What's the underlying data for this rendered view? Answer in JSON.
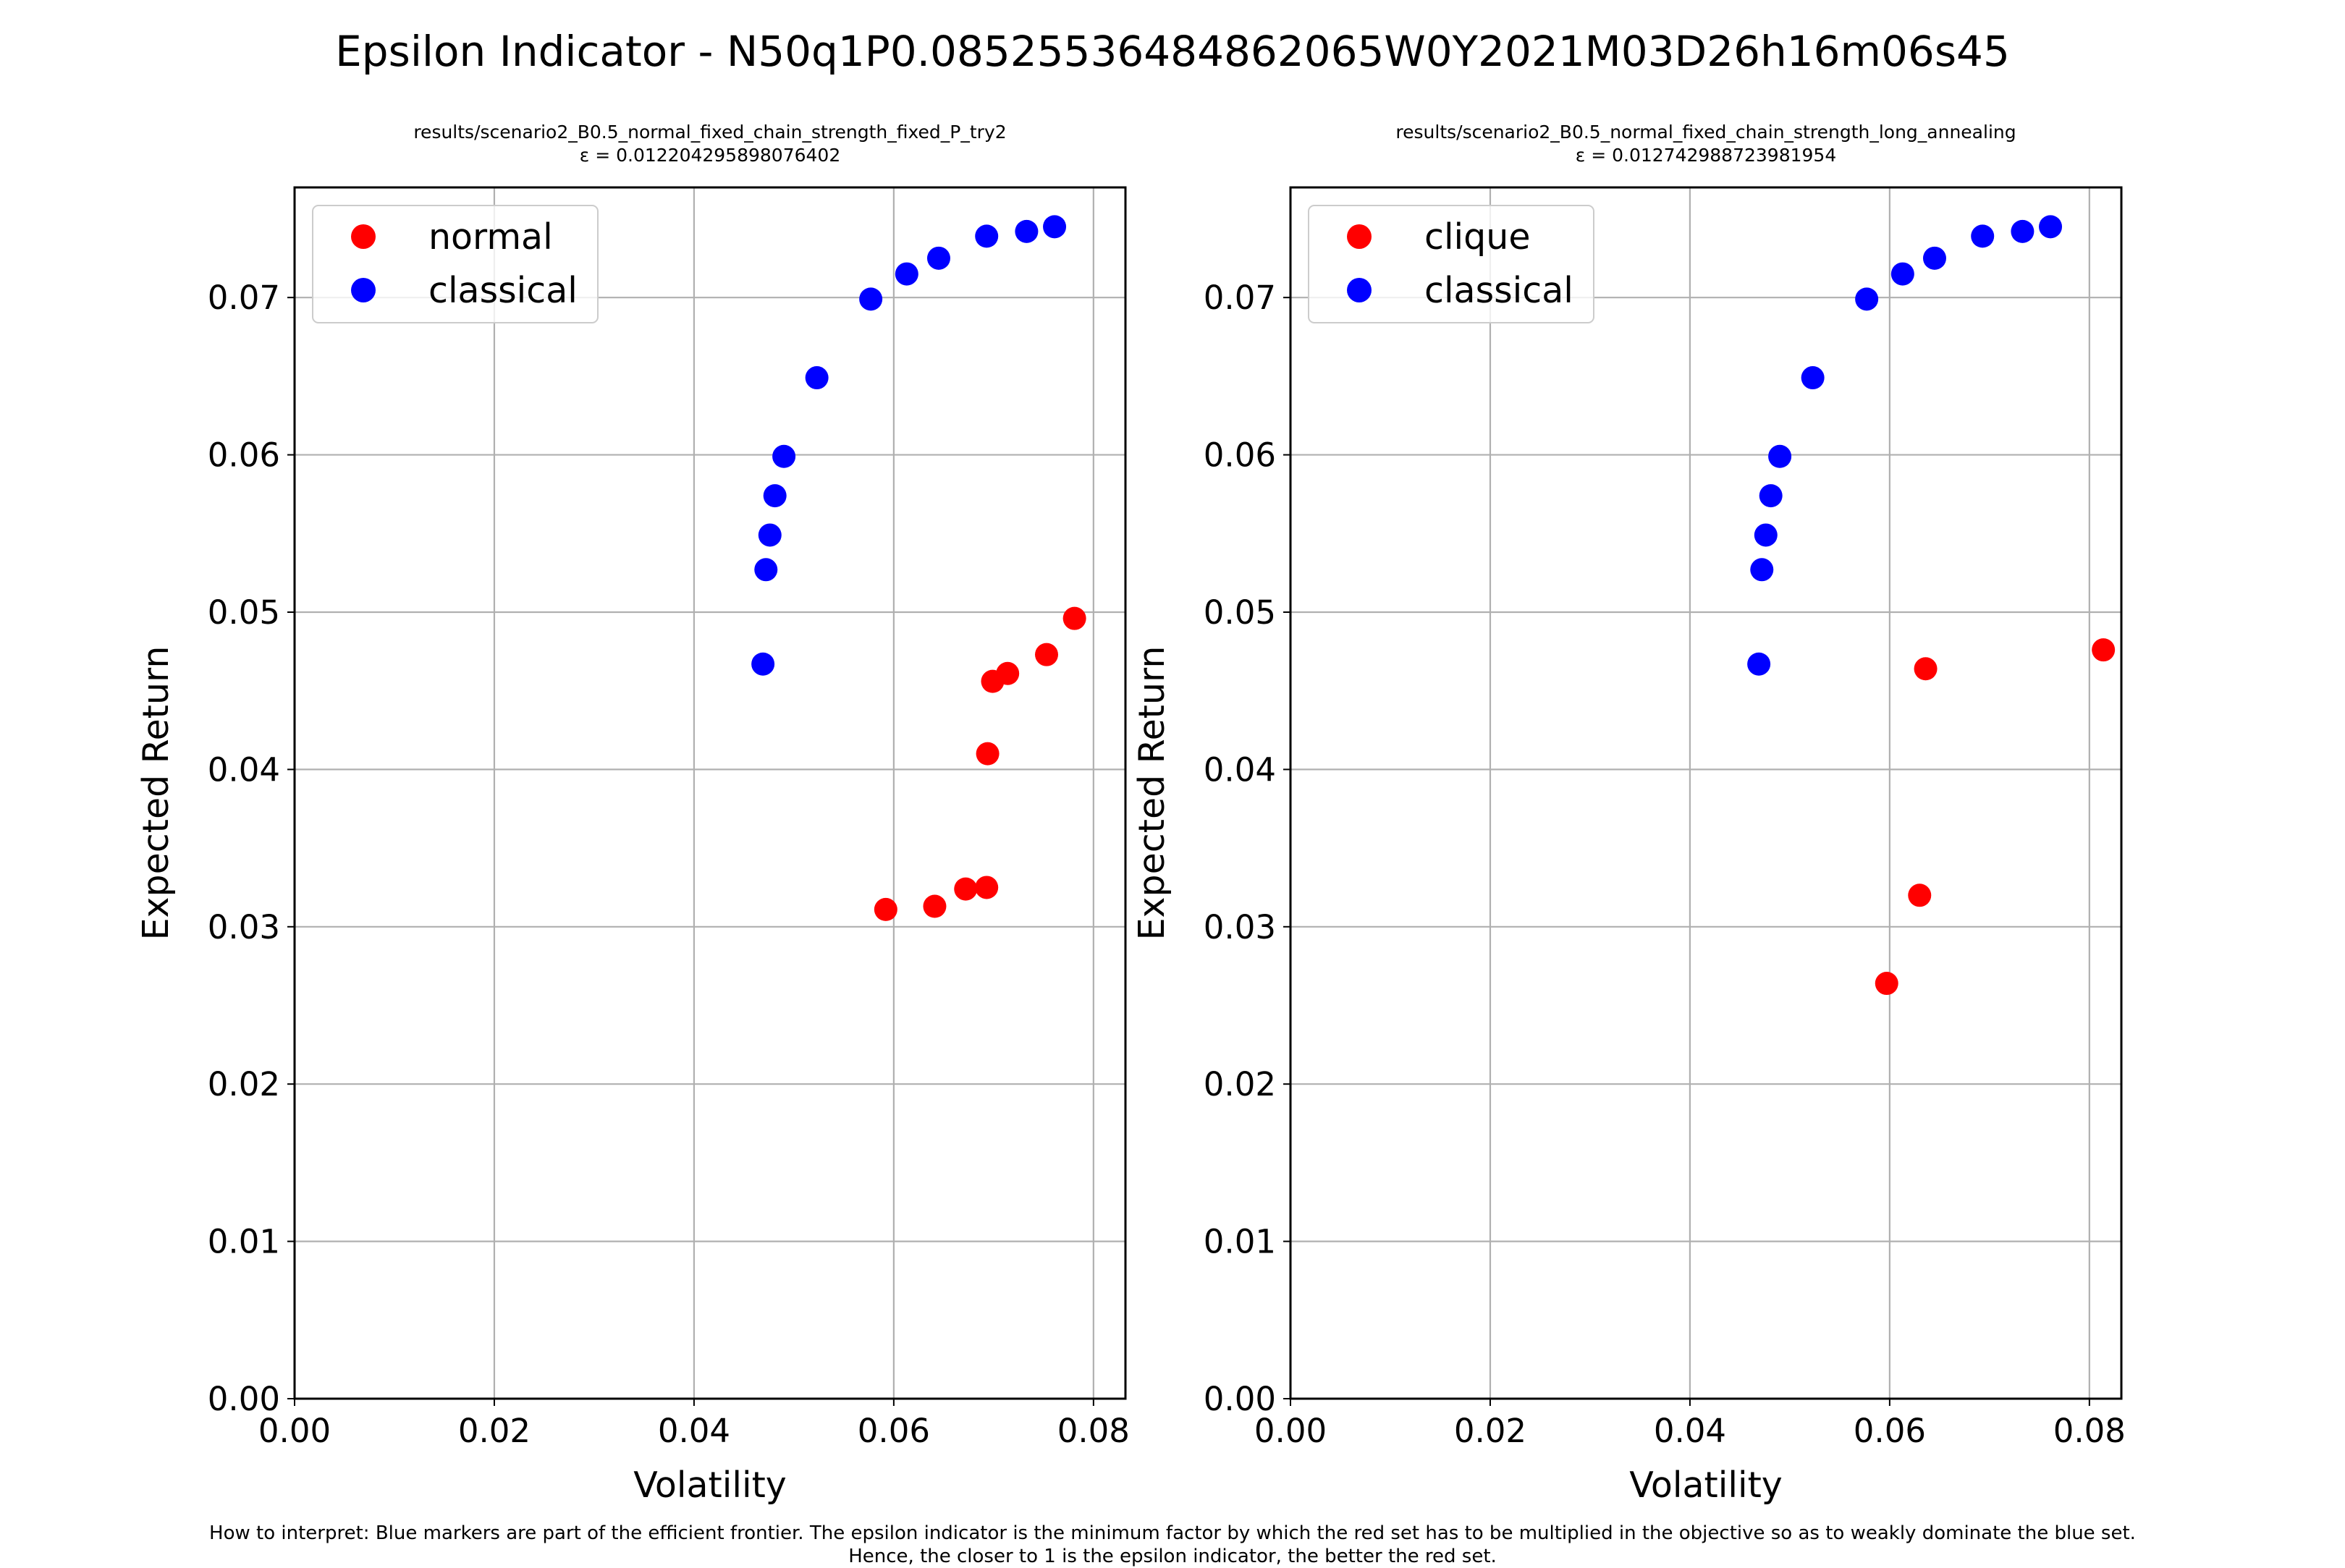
{
  "figure": {
    "suptitle": "Epsilon Indicator - N50q1P0.08525536484862065W0Y2021M03D26h16m06s45",
    "caption_line1": "How to interpret: Blue markers are part of the efficient frontier. The epsilon indicator is the minimum factor by which the red set has to be multiplied in the objective so as to weakly dominate the blue set.",
    "caption_line2": "Hence, the closer to 1 is the epsilon indicator, the better the red set."
  },
  "colors": {
    "red": "#ff0000",
    "blue": "#0000ff",
    "grid": "#b0b0b0",
    "axis": "#000000"
  },
  "chart_data": [
    {
      "type": "scatter",
      "title_line1": "results/scenario2_B0.5_normal_fixed_chain_strength_fixed_P_try2",
      "title_line2": "ε = 0.012204295898076402",
      "xlabel": "Volatility",
      "ylabel": "Expected Return",
      "xlim": [
        0.0,
        0.0832
      ],
      "ylim": [
        0.0,
        0.077
      ],
      "xticks": [
        0.0,
        0.02,
        0.04,
        0.06,
        0.08
      ],
      "xtick_labels": [
        "0.00",
        "0.02",
        "0.04",
        "0.06",
        "0.08"
      ],
      "yticks": [
        0.0,
        0.01,
        0.02,
        0.03,
        0.04,
        0.05,
        0.06,
        0.07
      ],
      "ytick_labels": [
        "0.00",
        "0.01",
        "0.02",
        "0.03",
        "0.04",
        "0.05",
        "0.06",
        "0.07"
      ],
      "grid": true,
      "legend_position": "top-left",
      "series": [
        {
          "name": "normal",
          "color": "#ff0000",
          "points": [
            [
              0.0592,
              0.0311
            ],
            [
              0.0641,
              0.0313
            ],
            [
              0.0672,
              0.0324
            ],
            [
              0.0693,
              0.0325
            ],
            [
              0.0694,
              0.041
            ],
            [
              0.0699,
              0.0456
            ],
            [
              0.0714,
              0.0461
            ],
            [
              0.0753,
              0.0473
            ],
            [
              0.0781,
              0.0496
            ]
          ]
        },
        {
          "name": "classical",
          "color": "#0000ff",
          "points": [
            [
              0.0469,
              0.0467
            ],
            [
              0.0472,
              0.0527
            ],
            [
              0.0476,
              0.0549
            ],
            [
              0.0481,
              0.0574
            ],
            [
              0.049,
              0.0599
            ],
            [
              0.0523,
              0.0649
            ],
            [
              0.0577,
              0.0699
            ],
            [
              0.0613,
              0.0715
            ],
            [
              0.0645,
              0.0725
            ],
            [
              0.0693,
              0.0739
            ],
            [
              0.0733,
              0.0742
            ],
            [
              0.0761,
              0.0745
            ]
          ]
        }
      ]
    },
    {
      "type": "scatter",
      "title_line1": "results/scenario2_B0.5_normal_fixed_chain_strength_long_annealing",
      "title_line2": "ε = 0.012742988723981954",
      "xlabel": "Volatility",
      "ylabel": "Expected Return",
      "xlim": [
        0.0,
        0.0832
      ],
      "ylim": [
        0.0,
        0.077
      ],
      "xticks": [
        0.0,
        0.02,
        0.04,
        0.06,
        0.08
      ],
      "xtick_labels": [
        "0.00",
        "0.02",
        "0.04",
        "0.06",
        "0.08"
      ],
      "yticks": [
        0.0,
        0.01,
        0.02,
        0.03,
        0.04,
        0.05,
        0.06,
        0.07
      ],
      "ytick_labels": [
        "0.00",
        "0.01",
        "0.02",
        "0.03",
        "0.04",
        "0.05",
        "0.06",
        "0.07"
      ],
      "grid": true,
      "legend_position": "top-left",
      "series": [
        {
          "name": "clique",
          "color": "#ff0000",
          "points": [
            [
              0.0597,
              0.0264
            ],
            [
              0.063,
              0.032
            ],
            [
              0.0636,
              0.0464
            ],
            [
              0.0814,
              0.0476
            ]
          ]
        },
        {
          "name": "classical",
          "color": "#0000ff",
          "points": [
            [
              0.0469,
              0.0467
            ],
            [
              0.0472,
              0.0527
            ],
            [
              0.0476,
              0.0549
            ],
            [
              0.0481,
              0.0574
            ],
            [
              0.049,
              0.0599
            ],
            [
              0.0523,
              0.0649
            ],
            [
              0.0577,
              0.0699
            ],
            [
              0.0613,
              0.0715
            ],
            [
              0.0645,
              0.0725
            ],
            [
              0.0693,
              0.0739
            ],
            [
              0.0733,
              0.0742
            ],
            [
              0.0761,
              0.0745
            ]
          ]
        }
      ]
    }
  ]
}
